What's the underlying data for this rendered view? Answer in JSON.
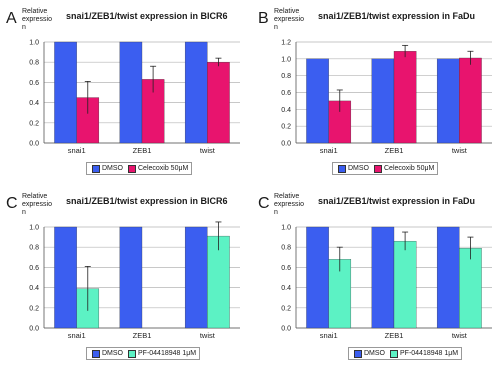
{
  "panels": [
    {
      "label": "A",
      "ylabel": "Relative expressio n",
      "title": "snai1/ZEB1/twist expression in BICR6"
    },
    {
      "label": "B",
      "ylabel": "Relative expressio n",
      "title": "snai1/ZEB1/twist expression in FaDu"
    },
    {
      "label": "C",
      "ylabel": "Relative expressio n",
      "title": "snai1/ZEB1/twist expression in BICR6"
    },
    {
      "label": "C",
      "ylabel": "Relative expressio n",
      "title": "snai1/ZEB1/twist expression in FaDu"
    }
  ],
  "colors": {
    "dmso": "#3b5ef0",
    "celecoxib": "#e8146e",
    "pf": "#5cf2c4"
  },
  "chart_data": [
    {
      "type": "bar",
      "title": "snai1/ZEB1/twist expression in BICR6",
      "ylabel": "Relative expressio n",
      "categories": [
        "snai1",
        "ZEB1",
        "twist"
      ],
      "yticks": [
        "0.0",
        "0.2",
        "0.4",
        "0.6",
        "0.8",
        "1.0"
      ],
      "ylim": [
        0,
        1.0
      ],
      "series": [
        {
          "name": "DMSO",
          "values": [
            1.0,
            1.0,
            1.0
          ],
          "errors": [
            0,
            0,
            0
          ]
        },
        {
          "name": "Celecoxib 50μM",
          "values": [
            0.45,
            0.63,
            0.8
          ],
          "errors": [
            0.16,
            0.13,
            0.04
          ]
        }
      ]
    },
    {
      "type": "bar",
      "title": "snai1/ZEB1/twist expression in FaDu",
      "ylabel": "Relative expressio n",
      "categories": [
        "snai1",
        "ZEB1",
        "twist"
      ],
      "yticks": [
        "0.0",
        "0.2",
        "0.4",
        "0.6",
        "0.8",
        "1.0",
        "1.2"
      ],
      "ylim": [
        0,
        1.2
      ],
      "series": [
        {
          "name": "DMSO",
          "values": [
            1.0,
            1.0,
            1.0
          ],
          "errors": [
            0,
            0,
            0
          ]
        },
        {
          "name": "Celecoxib 50μM",
          "values": [
            0.5,
            1.09,
            1.01
          ],
          "errors": [
            0.13,
            0.07,
            0.08
          ]
        }
      ]
    },
    {
      "type": "bar",
      "title": "snai1/ZEB1/twist expression in BICR6",
      "ylabel": "Relative expressio n",
      "categories": [
        "snai1",
        "ZEB1",
        "twist"
      ],
      "yticks": [
        "0.0",
        "0.2",
        "0.4",
        "0.6",
        "0.8",
        "1.0"
      ],
      "ylim": [
        0,
        1.0
      ],
      "series": [
        {
          "name": "DMSO",
          "values": [
            1.0,
            1.0,
            1.0
          ],
          "errors": [
            0,
            0,
            0
          ]
        },
        {
          "name": "PF-04418948 1μM",
          "values": [
            0.39,
            0.0,
            0.91
          ],
          "errors": [
            0.22,
            0,
            0.14
          ]
        }
      ]
    },
    {
      "type": "bar",
      "title": "snai1/ZEB1/twist expression in FaDu",
      "ylabel": "Relative expressio n",
      "categories": [
        "snai1",
        "ZEB1",
        "twist"
      ],
      "yticks": [
        "0.0",
        "0.2",
        "0.4",
        "0.6",
        "0.8",
        "1.0"
      ],
      "ylim": [
        0,
        1.0
      ],
      "series": [
        {
          "name": "DMSO",
          "values": [
            1.0,
            1.0,
            1.0
          ],
          "errors": [
            0,
            0,
            0
          ]
        },
        {
          "name": "PF-04418948 1μM",
          "values": [
            0.68,
            0.86,
            0.79
          ],
          "errors": [
            0.12,
            0.09,
            0.11
          ]
        }
      ]
    }
  ]
}
